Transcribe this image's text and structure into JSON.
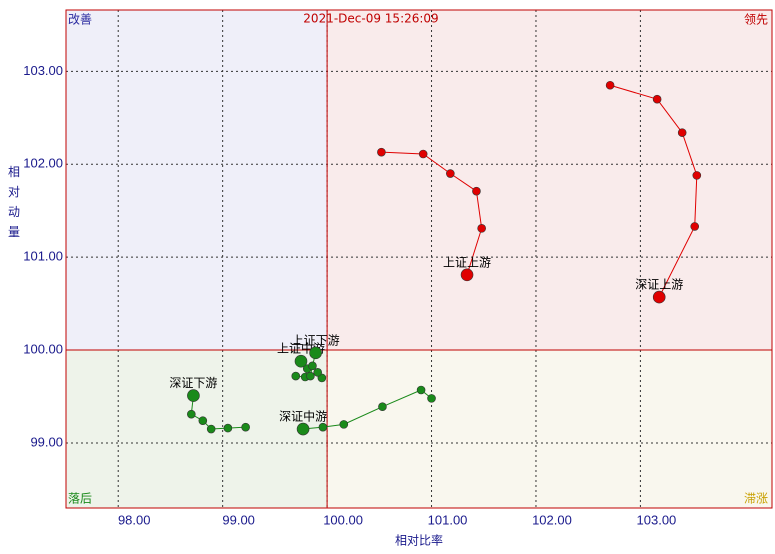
{
  "chart_data": {
    "type": "rrg",
    "title": "2021-Dec-09 15:26:09",
    "x_label": "相对比率",
    "y_label": "相对动量",
    "quadrant_labels": {
      "top_left": "改善",
      "top_right": "领先",
      "bottom_left": "落后",
      "bottom_right": "滞涨"
    },
    "center": {
      "x": 100,
      "y": 100
    },
    "xlim": [
      97.5,
      104.26
    ],
    "ylim": [
      98.3,
      103.66
    ],
    "xticks": [
      {
        "value": 98,
        "label": "98.00"
      },
      {
        "value": 99,
        "label": "99.00"
      },
      {
        "value": 100,
        "label": "100.00"
      },
      {
        "value": 101,
        "label": "101.00"
      },
      {
        "value": 102,
        "label": "102.00"
      },
      {
        "value": 103,
        "label": "103.00"
      }
    ],
    "yticks": [
      {
        "value": 99,
        "label": "99.00"
      },
      {
        "value": 100,
        "label": "100.00"
      },
      {
        "value": 101,
        "label": "101.00"
      },
      {
        "value": 102,
        "label": "102.00"
      },
      {
        "value": 103,
        "label": "103.00"
      }
    ],
    "grid": true,
    "series": [
      {
        "name": "上证上游",
        "color": "#e00000",
        "x": [
          100.52,
          100.92,
          101.18,
          101.43,
          101.48,
          101.34
        ],
        "y": [
          102.13,
          102.11,
          101.9,
          101.71,
          101.31,
          100.81
        ]
      },
      {
        "name": "深证上游",
        "color": "#e00000",
        "x": [
          102.71,
          103.16,
          103.4,
          103.54,
          103.52,
          103.18
        ],
        "y": [
          102.85,
          102.7,
          102.34,
          101.88,
          101.33,
          100.57
        ]
      },
      {
        "name": "深证下游",
        "color": "#1a8a1a",
        "x": [
          99.22,
          99.05,
          98.89,
          98.81,
          98.7,
          98.72
        ],
        "y": [
          99.17,
          99.16,
          99.15,
          99.24,
          99.31,
          99.51
        ]
      },
      {
        "name": "深证中游",
        "color": "#1a8a1a",
        "x": [
          101.0,
          100.9,
          100.53,
          100.16,
          99.96,
          99.77
        ],
        "y": [
          99.48,
          99.57,
          99.39,
          99.2,
          99.17,
          99.15
        ]
      },
      {
        "name": "上证中游",
        "color": "#1a8a1a",
        "x": [
          99.7,
          99.79,
          99.81,
          99.75
        ],
        "y": [
          99.72,
          99.71,
          99.8,
          99.88
        ]
      },
      {
        "name": "上证下游",
        "color": "#1a8a1a",
        "x": [
          99.95,
          99.91,
          99.84,
          99.86,
          99.89
        ],
        "y": [
          99.7,
          99.76,
          99.72,
          99.83,
          99.97
        ]
      }
    ]
  }
}
